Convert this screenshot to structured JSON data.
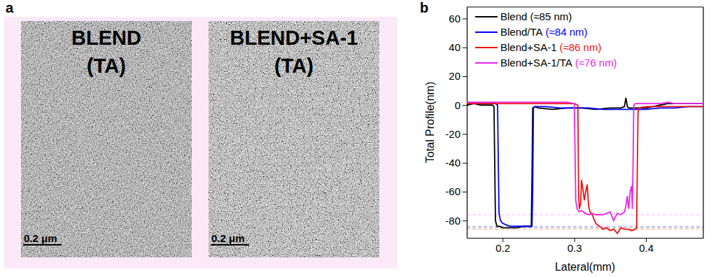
{
  "chart_data": [
    {
      "type": "image",
      "label": "a",
      "panels": [
        {
          "title": "BLEND (TA)",
          "scale_bar": "0.2 μm"
        },
        {
          "title": "BLEND+SA-1 (TA)",
          "scale_bar": "0.2 μm"
        }
      ]
    },
    {
      "type": "line",
      "label": "b",
      "x_label": "Lateral(mm)",
      "y_label": "Total Profile(nm)",
      "xlim": [
        0.15,
        0.48
      ],
      "xticks": [
        0.2,
        0.3,
        0.4
      ],
      "ylim": [
        -92,
        68
      ],
      "yticks": [
        -80,
        -60,
        -40,
        -20,
        0,
        20,
        40,
        60
      ],
      "legend": "upper left",
      "series": [
        {
          "name": "Blend (≈85 nm)",
          "color": "#000000",
          "level": -85,
          "x": [
            0.15,
            0.16,
            0.17,
            0.18,
            0.186,
            0.188,
            0.189,
            0.19,
            0.192,
            0.195,
            0.2,
            0.21,
            0.22,
            0.23,
            0.238,
            0.24,
            0.241,
            0.242,
            0.245,
            0.25,
            0.27,
            0.29,
            0.31,
            0.33,
            0.35,
            0.365,
            0.37,
            0.372,
            0.374,
            0.376,
            0.38,
            0.39,
            0.4,
            0.41,
            0.42,
            0.43,
            0.44,
            0.45,
            0.46,
            0.47,
            0.48
          ],
          "values": [
            0,
            1,
            0,
            0,
            0,
            -1,
            -40,
            -80,
            -84,
            -84,
            -85,
            -85,
            -85,
            -84,
            -84,
            -84,
            -50,
            -2,
            -1,
            -2,
            -3,
            -2,
            -2,
            -3,
            -2,
            -2,
            -1,
            5,
            -1,
            -2,
            -2,
            -2,
            -2,
            -1,
            0,
            1,
            1,
            1,
            1,
            1,
            1
          ]
        },
        {
          "name": "Blend/TA (≈84 nm)",
          "color": "#0000ff",
          "level": -84,
          "x": [
            0.15,
            0.17,
            0.19,
            0.193,
            0.194,
            0.195,
            0.197,
            0.2,
            0.205,
            0.21,
            0.22,
            0.23,
            0.24,
            0.241,
            0.242,
            0.243,
            0.245,
            0.26,
            0.28,
            0.3,
            0.32,
            0.34,
            0.36,
            0.38,
            0.4,
            0.42,
            0.44,
            0.46,
            0.48
          ],
          "values": [
            1,
            1,
            1,
            0,
            -40,
            -75,
            -80,
            -82,
            -83,
            -84,
            -84,
            -84,
            -84,
            -84,
            -60,
            -2,
            -1,
            -1,
            -2,
            -2,
            -2,
            -3,
            -3,
            -3,
            -3,
            -2,
            -2,
            -1,
            -1
          ]
        },
        {
          "name": "Blend+SA-1 (≈86 nm)",
          "color": "#ee1111",
          "level": -86,
          "x": [
            0.15,
            0.2,
            0.25,
            0.3,
            0.305,
            0.306,
            0.307,
            0.309,
            0.31,
            0.312,
            0.314,
            0.316,
            0.318,
            0.32,
            0.322,
            0.325,
            0.33,
            0.335,
            0.34,
            0.345,
            0.35,
            0.355,
            0.36,
            0.365,
            0.37,
            0.375,
            0.38,
            0.385,
            0.387,
            0.388,
            0.389,
            0.39,
            0.4,
            0.42,
            0.44,
            0.46,
            0.48
          ],
          "values": [
            1,
            1,
            1,
            1,
            0,
            -60,
            -72,
            -68,
            -52,
            -58,
            -66,
            -60,
            -55,
            -70,
            -74,
            -76,
            -82,
            -84,
            -86,
            -85,
            -87,
            -86,
            -89,
            -85,
            -86,
            -86,
            -87,
            -86,
            -85,
            -40,
            -5,
            -2,
            -1,
            -1,
            -1,
            -1,
            -1
          ]
        },
        {
          "name": "Blend+SA-1/TA (≈76 nm)",
          "color": "#ee22ee",
          "level": -76,
          "x": [
            0.15,
            0.2,
            0.25,
            0.29,
            0.3,
            0.301,
            0.302,
            0.304,
            0.307,
            0.31,
            0.315,
            0.32,
            0.325,
            0.33,
            0.34,
            0.35,
            0.355,
            0.36,
            0.365,
            0.37,
            0.372,
            0.374,
            0.376,
            0.378,
            0.38,
            0.381,
            0.382,
            0.383,
            0.385,
            0.39,
            0.4,
            0.42,
            0.43,
            0.44,
            0.46,
            0.48
          ],
          "values": [
            2,
            2,
            2,
            2,
            1,
            -30,
            -66,
            -72,
            -74,
            -73,
            -75,
            -76,
            -75,
            -76,
            -76,
            -74,
            -80,
            -75,
            -76,
            -74,
            -70,
            -63,
            -72,
            -60,
            -56,
            -72,
            -40,
            0,
            1,
            1,
            1,
            1,
            2,
            1,
            1,
            1
          ]
        }
      ]
    }
  ]
}
